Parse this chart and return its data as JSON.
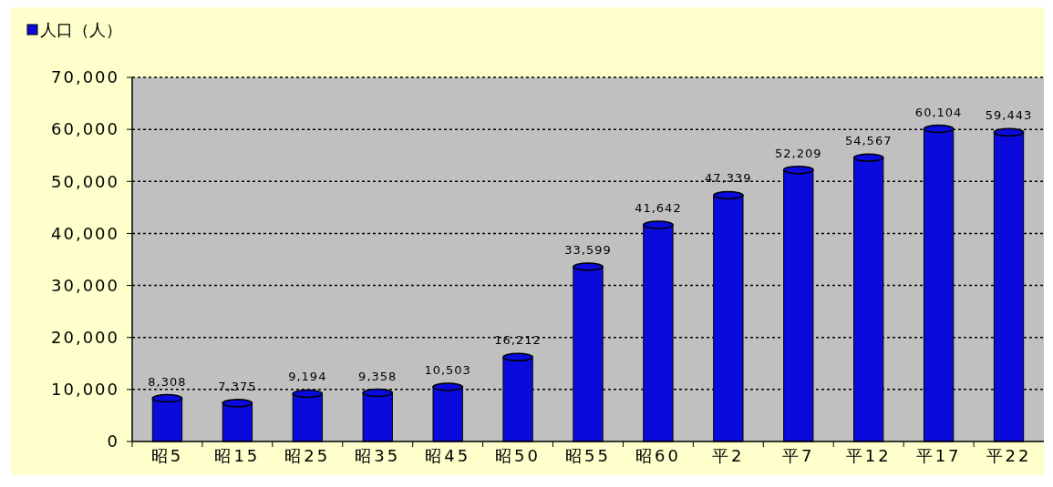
{
  "chart_data": {
    "type": "bar",
    "categories": [
      "昭5",
      "昭15",
      "昭25",
      "昭35",
      "昭45",
      "昭50",
      "昭55",
      "昭60",
      "平2",
      "平7",
      "平12",
      "平17",
      "平22"
    ],
    "series": [
      {
        "name": "人口（人）",
        "color": "#0a0adc",
        "values": [
          8308,
          7375,
          9194,
          9358,
          10503,
          16212,
          33599,
          41642,
          47339,
          52209,
          54567,
          60104,
          59443
        ],
        "value_labels": [
          "8,308",
          "7,375",
          "9,194",
          "9,358",
          "10,503",
          "16,212",
          "33,599",
          "41,642",
          "47,339",
          "52,209",
          "54,567",
          "60,104",
          "59,443"
        ]
      }
    ],
    "ylim": [
      0,
      70000
    ],
    "yticks": [
      {
        "value": 0,
        "label": "0"
      },
      {
        "value": 10000,
        "label": "10,000"
      },
      {
        "value": 20000,
        "label": "20,000"
      },
      {
        "value": 30000,
        "label": "30,000"
      },
      {
        "value": 40000,
        "label": "40,000"
      },
      {
        "value": 50000,
        "label": "50,000"
      },
      {
        "value": 60000,
        "label": "60,000"
      },
      {
        "value": 70000,
        "label": "70,000"
      }
    ],
    "grid": "y",
    "legend": "top left"
  }
}
